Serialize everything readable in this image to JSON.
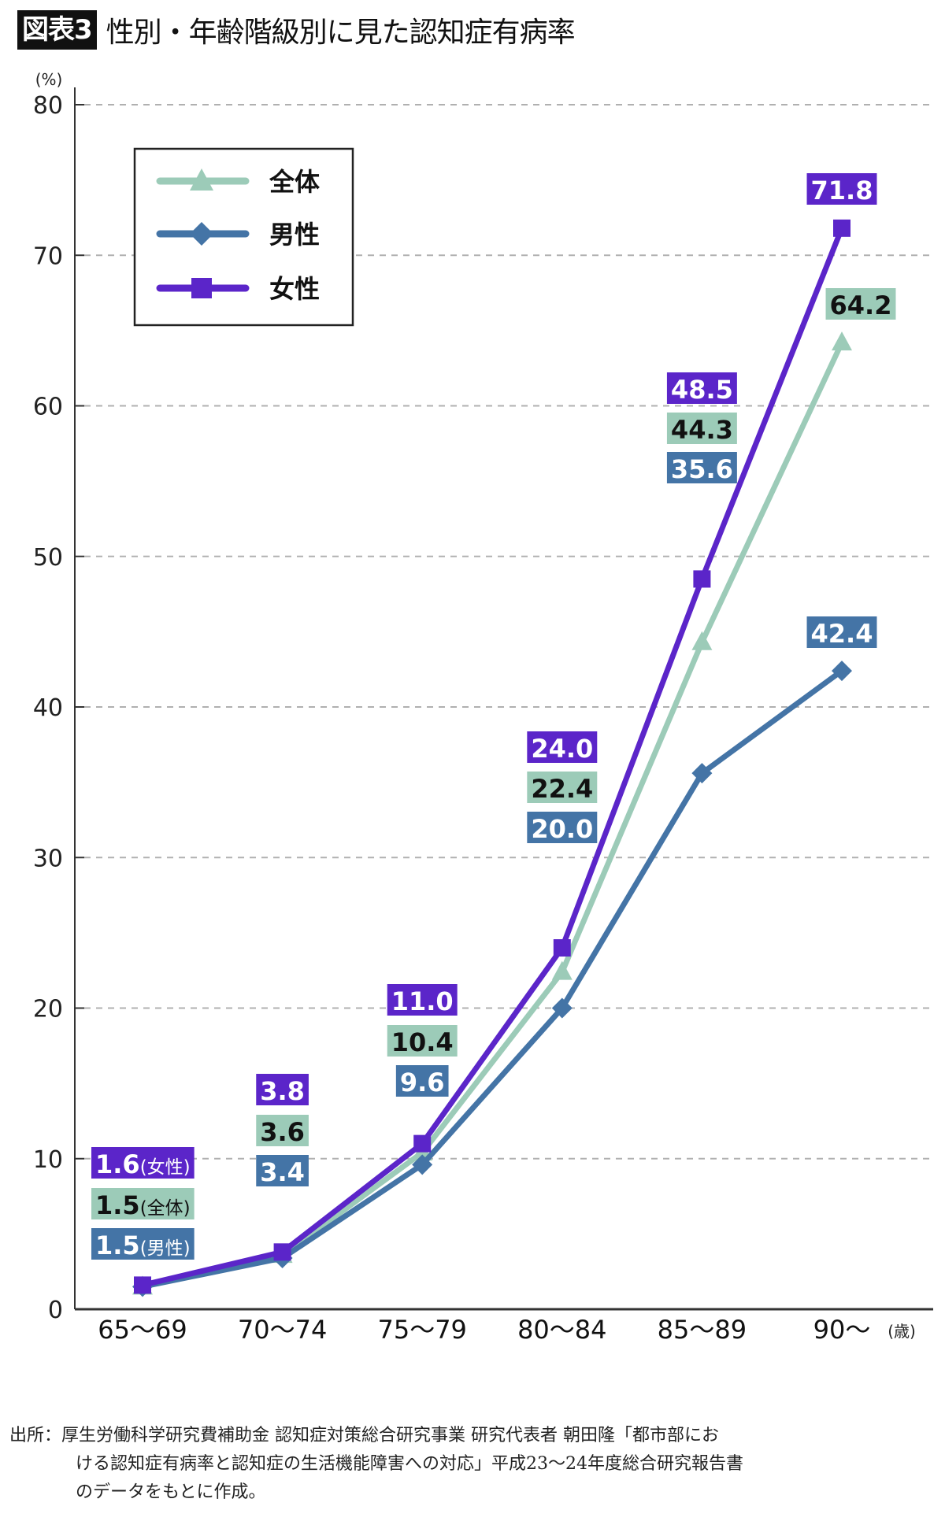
{
  "title": {
    "badge": "図表3",
    "text": "性別・年齢階級別に見た認知症有病率"
  },
  "colors": {
    "all": "#9ccbb8",
    "male": "#4474a6",
    "female": "#5b25c9",
    "grid": "#b0b0b0",
    "axis": "#333333"
  },
  "chart_data": {
    "type": "line",
    "title": "性別・年齢階級別に見た認知症有病率",
    "xlabel": "(歳)",
    "ylabel": "(%)",
    "ylim": [
      0,
      80
    ],
    "yticks": [
      0,
      10,
      20,
      30,
      40,
      50,
      60,
      70,
      80
    ],
    "grid": true,
    "legend_position": "top-left",
    "categories": [
      "65～69",
      "70～74",
      "75～79",
      "80～84",
      "85～89",
      "90～"
    ],
    "series": [
      {
        "key": "all",
        "name": "全体",
        "marker": "triangle",
        "values": [
          1.5,
          3.6,
          10.4,
          22.4,
          44.3,
          64.2
        ]
      },
      {
        "key": "male",
        "name": "男性",
        "marker": "diamond",
        "values": [
          1.5,
          3.4,
          9.6,
          20.0,
          35.6,
          42.4
        ]
      },
      {
        "key": "female",
        "name": "女性",
        "marker": "square",
        "values": [
          1.6,
          3.8,
          11.0,
          24.0,
          48.5,
          71.8
        ]
      }
    ],
    "data_labels": {
      "first_point_suffix": {
        "female": "(女性)",
        "all": "(全体)",
        "male": "(男性)"
      }
    }
  },
  "legend": {
    "items": [
      {
        "key": "all",
        "label": "全体"
      },
      {
        "key": "male",
        "label": "男性"
      },
      {
        "key": "female",
        "label": "女性"
      }
    ]
  },
  "source": {
    "line1": "出所：厚生労働科学研究費補助金 認知症対策総合研究事業 研究代表者 朝田隆「都市部にお",
    "line2": "ける認知症有病率と認知症の生活機能障害への対応」平成23～24年度総合研究報告書",
    "line3": "のデータをもとに作成。"
  }
}
